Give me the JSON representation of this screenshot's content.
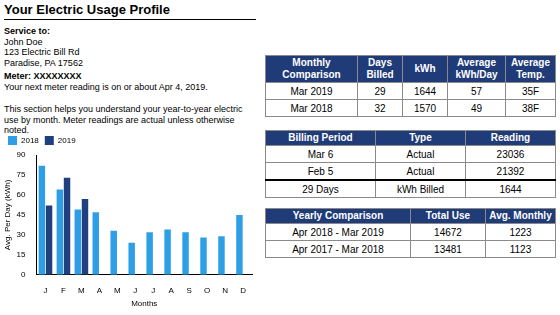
{
  "header": {
    "title": "Your Electric Usage Profile"
  },
  "service": {
    "label": "Service to:",
    "lines": [
      "John Doe",
      "123 Electric Bill Rd",
      "Paradise, PA 17562"
    ],
    "meter_label": "Meter:",
    "meter": "XXXXXXXX",
    "next_reading": "Your next meter reading is on or about Apr 4, 2019."
  },
  "note": "This section helps you understand your year-to-year electric use by month. Meter readings are actual unless otherwise noted.",
  "chart_data": {
    "type": "bar",
    "categories": [
      "J",
      "F",
      "M",
      "A",
      "M",
      "J",
      "J",
      "A",
      "S",
      "O",
      "N",
      "D"
    ],
    "series": [
      {
        "name": "2018",
        "color": "#2e9fe6",
        "values": [
          82,
          64,
          49,
          47,
          33,
          24,
          32,
          34,
          32,
          28,
          29,
          45
        ]
      },
      {
        "name": "2019",
        "color": "#1f3f7f",
        "values": [
          52,
          73,
          57,
          null,
          null,
          null,
          null,
          null,
          null,
          null,
          null,
          null
        ]
      }
    ],
    "x_label": "Months",
    "y_label": "Avg. Per Day (kWh)",
    "ylim": [
      0,
      90
    ],
    "yticks": [
      0,
      15,
      30,
      45,
      60,
      75,
      90
    ],
    "grid": false,
    "legend": "top"
  },
  "tables": [
    {
      "header": [
        "Monthly Comparison",
        "Days Billed",
        "kWh",
        "Average kWh/Day",
        "Average Temp."
      ],
      "rows": [
        [
          "Mar 2019",
          "29",
          "1644",
          "57",
          "35F"
        ],
        [
          "Mar 2018",
          "32",
          "1570",
          "49",
          "38F"
        ]
      ]
    },
    {
      "header": [
        "Billing Period",
        "Type",
        "Reading"
      ],
      "rows": [
        [
          "Mar 6",
          "Actual",
          "23036"
        ],
        [
          "Feb 5",
          "Actual",
          "21392"
        ],
        [
          "29 Days",
          "kWh Billed",
          "1644"
        ]
      ]
    },
    {
      "header": [
        "Yearly Comparison",
        "Total Use",
        "Avg. Monthly"
      ],
      "rows": [
        [
          "Apr 2018 - Mar 2019",
          "14672",
          "1223"
        ],
        [
          "Apr 2017 - Mar 2018",
          "13481",
          "1123"
        ]
      ]
    }
  ]
}
